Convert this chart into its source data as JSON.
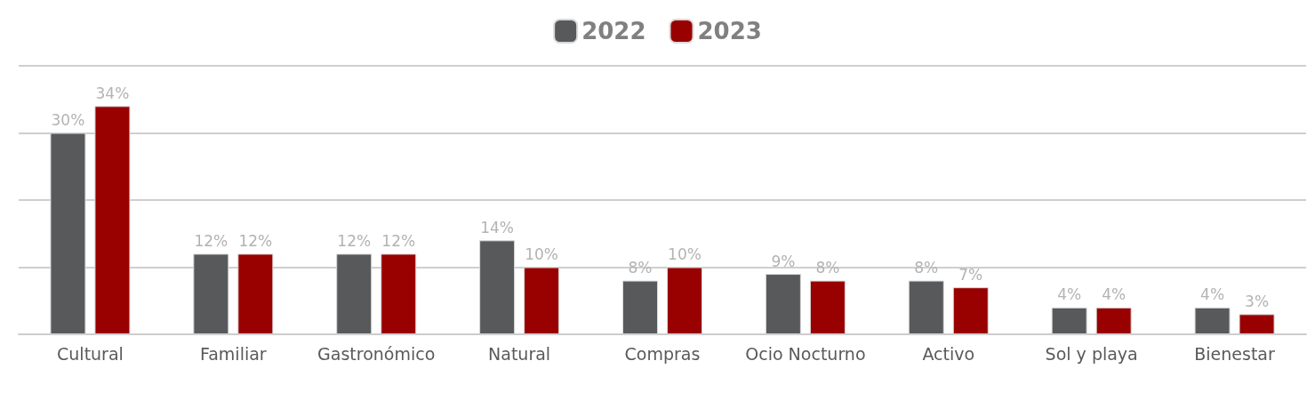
{
  "chart_data": {
    "type": "bar",
    "categories": [
      "Cultural",
      "Familiar",
      "Gastronómico",
      "Natural",
      "Compras",
      "Ocio Nocturno",
      "Activo",
      "Sol y playa",
      "Bienestar"
    ],
    "series": [
      {
        "name": "2022",
        "color": "#58595b",
        "values": [
          30,
          12,
          12,
          14,
          8,
          9,
          8,
          4,
          4
        ],
        "value_labels": [
          "30%",
          "12%",
          "12%",
          "14%",
          "8%",
          "9%",
          "8%",
          "4%",
          "4%"
        ]
      },
      {
        "name": "2023",
        "color": "#990000",
        "values": [
          34,
          12,
          12,
          10,
          10,
          8,
          7,
          4,
          3
        ],
        "value_labels": [
          "34%",
          "12%",
          "12%",
          "10%",
          "10%",
          "8%",
          "7%",
          "4%",
          "3%"
        ]
      }
    ],
    "ylim": [
      0,
      40
    ],
    "yticks": [
      {
        "value": 0,
        "label": null
      },
      {
        "value": 10,
        "label": null
      },
      {
        "value": 20,
        "label": null
      },
      {
        "value": 30,
        "label": null
      },
      {
        "value": 40,
        "label": null
      }
    ],
    "grid": "y",
    "legend": "top",
    "tick_labels": "x"
  }
}
